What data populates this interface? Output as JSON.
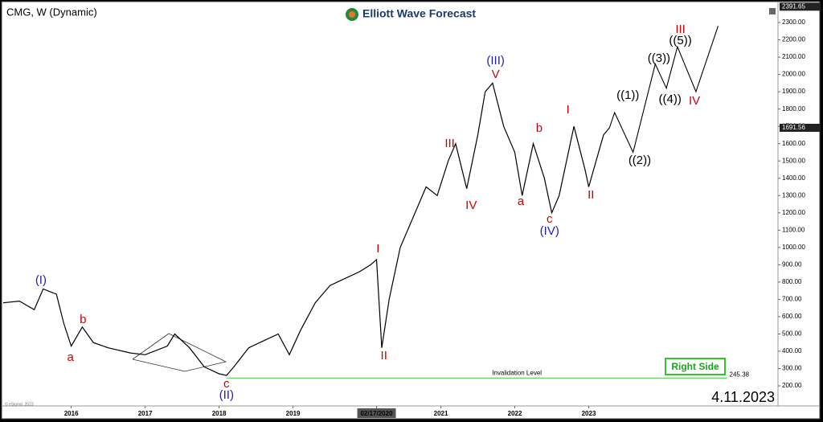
{
  "chart_data": {
    "type": "line",
    "title": "CMG, W (Dynamic)",
    "brand": "Elliott Wave Forecast",
    "date_stamp": "4.11.2023",
    "badge": "Right Side",
    "source": "© eSignal, 2023",
    "xlim": [
      2015.08,
      2025.56
    ],
    "xticks": [
      2016,
      2017,
      2018,
      2019,
      {
        "value": 2020.13,
        "label": "02/17/2020"
      },
      2021,
      2022,
      2023
    ],
    "ylim": [
      84,
      2407
    ],
    "yticks": [
      {
        "value": 200,
        "label": "200.00"
      },
      {
        "value": 300,
        "label": "300.00"
      },
      {
        "value": 400,
        "label": "400.00"
      },
      {
        "value": 500,
        "label": "500.00"
      },
      {
        "value": 600,
        "label": "600.00"
      },
      {
        "value": 700,
        "label": "700.00"
      },
      {
        "value": 800,
        "label": "800.00"
      },
      {
        "value": 900,
        "label": "900.00"
      },
      {
        "value": 1000,
        "label": "1000.00"
      },
      {
        "value": 1100,
        "label": "1100.00"
      },
      {
        "value": 1200,
        "label": "1200.00"
      },
      {
        "value": 1300,
        "label": "1300.00"
      },
      {
        "value": 1400,
        "label": "1400.00"
      },
      {
        "value": 1500,
        "label": "1500.00"
      },
      {
        "value": 1600,
        "label": "1600.00"
      },
      {
        "value": 1700,
        "label": "1700.00"
      },
      {
        "value": 1800,
        "label": "1800.00"
      },
      {
        "value": 1900,
        "label": "1900.00"
      },
      {
        "value": 2000,
        "label": "2000.00"
      },
      {
        "value": 2100,
        "label": "2100.00"
      },
      {
        "value": 2200,
        "label": "2200.00"
      },
      {
        "value": 2300,
        "label": "2300.00"
      }
    ],
    "series": [
      {
        "color": "#000000",
        "x": [
          2015.08,
          2015.3,
          2015.5,
          2015.62,
          2015.8,
          2015.9,
          2016.0,
          2016.15,
          2016.3,
          2016.5,
          2016.8,
          2017.0,
          2017.3,
          2017.4,
          2017.6,
          2017.8,
          2018.0,
          2018.1,
          2018.2,
          2018.4,
          2018.6,
          2018.8,
          2018.95,
          2019.1,
          2019.3,
          2019.5,
          2019.7,
          2019.9,
          2020.05,
          2020.13,
          2020.2,
          2020.3,
          2020.45,
          2020.6,
          2020.8,
          2020.95,
          2021.1,
          2021.2,
          2021.35,
          2021.5,
          2021.6,
          2021.7,
          2021.85,
          2022.0,
          2022.1,
          2022.25,
          2022.4,
          2022.5,
          2022.6,
          2022.8,
          2022.95,
          2023.0,
          2023.1,
          2023.2,
          2023.28
        ],
        "values": [
          680,
          690,
          640,
          760,
          730,
          560,
          430,
          540,
          450,
          420,
          390,
          380,
          430,
          500,
          420,
          310,
          270,
          260,
          310,
          420,
          460,
          500,
          380,
          520,
          680,
          780,
          820,
          860,
          900,
          930,
          420,
          700,
          1000,
          1150,
          1350,
          1300,
          1500,
          1600,
          1340,
          1650,
          1900,
          1950,
          1700,
          1550,
          1300,
          1600,
          1400,
          1200,
          1300,
          1700,
          1450,
          1350,
          1500,
          1650,
          1691.56
        ]
      },
      {
        "color": "#000000",
        "x": [
          2023.28,
          2023.35,
          2023.6,
          2023.9,
          2024.05,
          2024.2,
          2024.45,
          2024.75
        ],
        "values": [
          1691.56,
          1780,
          1550,
          2060,
          1920,
          2160,
          1900,
          2280
        ]
      }
    ],
    "price_labels": [
      2391.65,
      1691.56
    ],
    "invalidation": {
      "label": "Invalidation Level",
      "value": 245.38,
      "x": [
        2018.1,
        2024.87
      ]
    },
    "annotations": [
      {
        "text": "(I)",
        "color": "#1f1fb4",
        "x": 2015.59,
        "y": 808
      },
      {
        "text": "a",
        "color": "#d10000",
        "x": 2015.99,
        "y": 362
      },
      {
        "text": "b",
        "color": "#d10000",
        "x": 2016.16,
        "y": 581
      },
      {
        "text": "c",
        "color": "#d10000",
        "x": 2018.1,
        "y": 209
      },
      {
        "text": "(II)",
        "color": "#1f1fb4",
        "x": 2018.1,
        "y": 144
      },
      {
        "text": "I",
        "color": "#d10000",
        "x": 2020.15,
        "y": 990
      },
      {
        "text": "II",
        "color": "#d10000",
        "x": 2020.23,
        "y": 372
      },
      {
        "text": "III",
        "color": "#d10000",
        "x": 2021.12,
        "y": 1598
      },
      {
        "text": "IV",
        "color": "#d10000",
        "x": 2021.41,
        "y": 1240
      },
      {
        "text": "(III)",
        "color": "#1f1fb4",
        "x": 2021.74,
        "y": 2077
      },
      {
        "text": "V",
        "color": "#d10000",
        "x": 2021.74,
        "y": 1998
      },
      {
        "text": "a",
        "color": "#d10000",
        "x": 2022.08,
        "y": 1264
      },
      {
        "text": "b",
        "color": "#d10000",
        "x": 2022.33,
        "y": 1687
      },
      {
        "text": "c",
        "color": "#d10000",
        "x": 2022.47,
        "y": 1162
      },
      {
        "text": "(IV)",
        "color": "#1f1fb4",
        "x": 2022.47,
        "y": 1092
      },
      {
        "text": "I",
        "color": "#d10000",
        "x": 2022.72,
        "y": 1793
      },
      {
        "text": "II",
        "color": "#d10000",
        "x": 2023.03,
        "y": 1301
      },
      {
        "text": "((1))",
        "color": "#000000",
        "x": 2023.53,
        "y": 1877
      },
      {
        "text": "((2))",
        "color": "#000000",
        "x": 2023.69,
        "y": 1501
      },
      {
        "text": "((3))",
        "color": "#000000",
        "x": 2023.95,
        "y": 2091
      },
      {
        "text": "((4))",
        "color": "#000000",
        "x": 2024.1,
        "y": 1854
      },
      {
        "text": "((5))",
        "color": "#000000",
        "x": 2024.24,
        "y": 2193
      },
      {
        "text": "III",
        "color": "#d10000",
        "x": 2024.24,
        "y": 2258
      },
      {
        "text": "IV",
        "color": "#d10000",
        "x": 2024.43,
        "y": 1845
      }
    ]
  }
}
